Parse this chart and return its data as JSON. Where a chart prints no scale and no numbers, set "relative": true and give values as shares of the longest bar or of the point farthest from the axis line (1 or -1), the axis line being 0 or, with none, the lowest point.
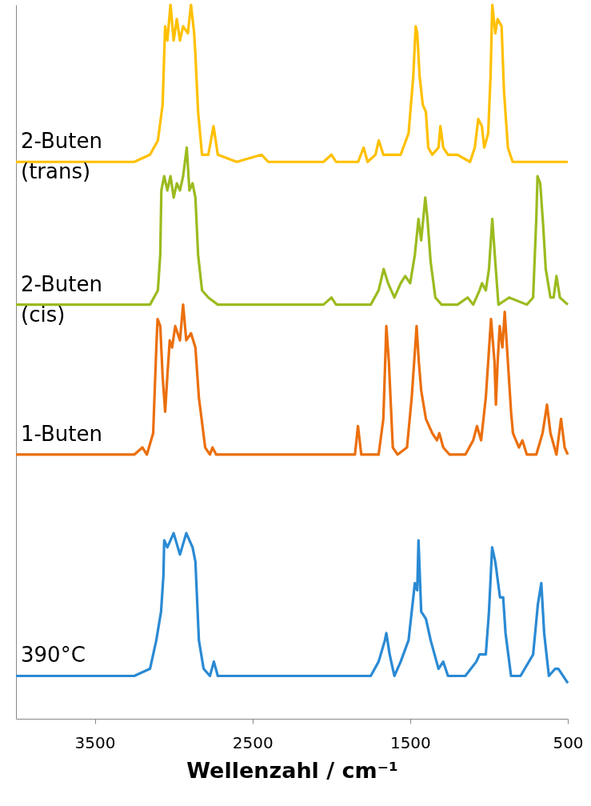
{
  "chart_data": {
    "type": "line",
    "relative": true,
    "xlabel": "Wellenzahl / cm⁻¹",
    "xlim": [
      4000,
      500
    ],
    "xticks": [
      3500,
      2500,
      1500,
      500
    ],
    "grid": false,
    "marker": "none",
    "line_style": "solid",
    "series": [
      {
        "name": "2-Buten (trans)",
        "color": "#ffc000",
        "x": [
          4000,
          3500,
          3250,
          3150,
          3100,
          3070,
          3060,
          3054,
          3040,
          3020,
          3000,
          2980,
          2960,
          2940,
          2910,
          2890,
          2870,
          2862,
          2845,
          2820,
          2780,
          2747,
          2720,
          2600,
          2442,
          2400,
          2050,
          1999,
          1970,
          1830,
          1795,
          1770,
          1720,
          1699,
          1670,
          1560,
          1510,
          1480,
          1465,
          1455,
          1440,
          1420,
          1400,
          1385,
          1360,
          1320,
          1308,
          1290,
          1260,
          1200,
          1120,
          1090,
          1068,
          1045,
          1030,
          1005,
          990,
          979,
          960,
          945,
          920,
          905,
          880,
          850,
          800,
          500
        ],
        "values": [
          0.78,
          0.78,
          0.78,
          0.79,
          0.81,
          0.86,
          0.93,
          0.97,
          0.95,
          1,
          0.95,
          0.98,
          0.95,
          0.97,
          0.96,
          1,
          0.96,
          0.93,
          0.85,
          0.79,
          0.79,
          0.83,
          0.79,
          0.78,
          0.79,
          0.78,
          0.78,
          0.79,
          0.78,
          0.78,
          0.8,
          0.78,
          0.79,
          0.81,
          0.79,
          0.79,
          0.82,
          0.9,
          0.97,
          0.96,
          0.9,
          0.86,
          0.85,
          0.8,
          0.79,
          0.8,
          0.83,
          0.8,
          0.79,
          0.79,
          0.78,
          0.8,
          0.84,
          0.83,
          0.8,
          0.82,
          0.9,
          1,
          0.96,
          0.98,
          0.97,
          0.88,
          0.8,
          0.78,
          0.78,
          0.78
        ]
      },
      {
        "name": "2-Buten (cis)",
        "color": "#9bbb1f",
        "x": [
          4000,
          3500,
          3300,
          3150,
          3100,
          3085,
          3078,
          3060,
          3040,
          3020,
          3000,
          2980,
          2960,
          2940,
          2917,
          2900,
          2880,
          2862,
          2845,
          2820,
          2780,
          2720,
          2500,
          2050,
          1999,
          1970,
          1750,
          1700,
          1668,
          1640,
          1600,
          1560,
          1531,
          1500,
          1470,
          1447,
          1430,
          1404,
          1390,
          1370,
          1340,
          1300,
          1200,
          1135,
          1100,
          1060,
          1044,
          1020,
          1000,
          979,
          960,
          940,
          872,
          760,
          720,
          700,
          692,
          675,
          656,
          640,
          610,
          590,
          572,
          550,
          500
        ],
        "values": [
          0.58,
          0.58,
          0.58,
          0.58,
          0.6,
          0.65,
          0.74,
          0.76,
          0.74,
          0.76,
          0.73,
          0.75,
          0.74,
          0.76,
          0.8,
          0.74,
          0.75,
          0.73,
          0.65,
          0.6,
          0.59,
          0.58,
          0.58,
          0.58,
          0.59,
          0.58,
          0.58,
          0.6,
          0.63,
          0.61,
          0.59,
          0.61,
          0.62,
          0.61,
          0.65,
          0.7,
          0.67,
          0.73,
          0.7,
          0.64,
          0.59,
          0.58,
          0.58,
          0.59,
          0.58,
          0.6,
          0.61,
          0.6,
          0.63,
          0.7,
          0.64,
          0.58,
          0.59,
          0.58,
          0.59,
          0.7,
          0.76,
          0.75,
          0.69,
          0.63,
          0.59,
          0.59,
          0.62,
          0.59,
          0.58
        ]
      },
      {
        "name": "1-Buten",
        "color": "#eb6f0c",
        "x": [
          4000,
          3500,
          3250,
          3198,
          3170,
          3130,
          3110,
          3102,
          3085,
          3070,
          3054,
          3040,
          3025,
          3010,
          2990,
          2960,
          2940,
          2920,
          2890,
          2862,
          2840,
          2800,
          2770,
          2754,
          2730,
          2500,
          2000,
          1900,
          1850,
          1831,
          1810,
          1700,
          1670,
          1651,
          1635,
          1610,
          1580,
          1520,
          1490,
          1459,
          1445,
          1430,
          1400,
          1360,
          1330,
          1315,
          1290,
          1250,
          1150,
          1100,
          1076,
          1050,
          1020,
          987,
          965,
          956,
          945,
          932,
          915,
          900,
          880,
          860,
          848,
          810,
          788,
          760,
          700,
          660,
          632,
          610,
          572,
          543,
          520,
          500
        ],
        "values": [
          0.37,
          0.37,
          0.37,
          0.38,
          0.37,
          0.4,
          0.52,
          0.56,
          0.55,
          0.48,
          0.43,
          0.48,
          0.53,
          0.52,
          0.55,
          0.53,
          0.58,
          0.53,
          0.54,
          0.52,
          0.45,
          0.38,
          0.37,
          0.38,
          0.37,
          0.37,
          0.37,
          0.37,
          0.37,
          0.41,
          0.37,
          0.37,
          0.42,
          0.55,
          0.5,
          0.38,
          0.37,
          0.38,
          0.45,
          0.55,
          0.5,
          0.46,
          0.42,
          0.4,
          0.39,
          0.4,
          0.38,
          0.37,
          0.37,
          0.39,
          0.41,
          0.39,
          0.45,
          0.56,
          0.5,
          0.44,
          0.5,
          0.55,
          0.52,
          0.57,
          0.5,
          0.43,
          0.4,
          0.38,
          0.39,
          0.37,
          0.37,
          0.4,
          0.44,
          0.4,
          0.37,
          0.42,
          0.38,
          0.37
        ]
      },
      {
        "name": "390°C",
        "color": "#2a8ad4",
        "x": [
          4000,
          3500,
          3250,
          3150,
          3110,
          3080,
          3065,
          3060,
          3040,
          3000,
          2960,
          2920,
          2880,
          2862,
          2840,
          2810,
          2770,
          2745,
          2720,
          2500,
          2030,
          2010,
          1980,
          1850,
          1820,
          1750,
          1700,
          1660,
          1651,
          1630,
          1600,
          1560,
          1510,
          1470,
          1455,
          1447,
          1430,
          1400,
          1370,
          1320,
          1290,
          1260,
          1150,
          1080,
          1060,
          1020,
          1000,
          980,
          960,
          930,
          910,
          895,
          860,
          800,
          720,
          690,
          668,
          650,
          620,
          580,
          560,
          500
        ],
        "values": [
          0.06,
          0.06,
          0.06,
          0.07,
          0.11,
          0.15,
          0.2,
          0.25,
          0.24,
          0.26,
          0.23,
          0.26,
          0.24,
          0.22,
          0.11,
          0.07,
          0.06,
          0.08,
          0.06,
          0.06,
          0.06,
          0.06,
          0.06,
          0.06,
          0.06,
          0.06,
          0.08,
          0.11,
          0.12,
          0.09,
          0.06,
          0.08,
          0.11,
          0.19,
          0.18,
          0.25,
          0.15,
          0.14,
          0.11,
          0.07,
          0.08,
          0.06,
          0.06,
          0.08,
          0.09,
          0.09,
          0.15,
          0.24,
          0.22,
          0.17,
          0.17,
          0.12,
          0.06,
          0.06,
          0.09,
          0.16,
          0.19,
          0.12,
          0.06,
          0.07,
          0.07,
          0.05
        ]
      }
    ]
  }
}
